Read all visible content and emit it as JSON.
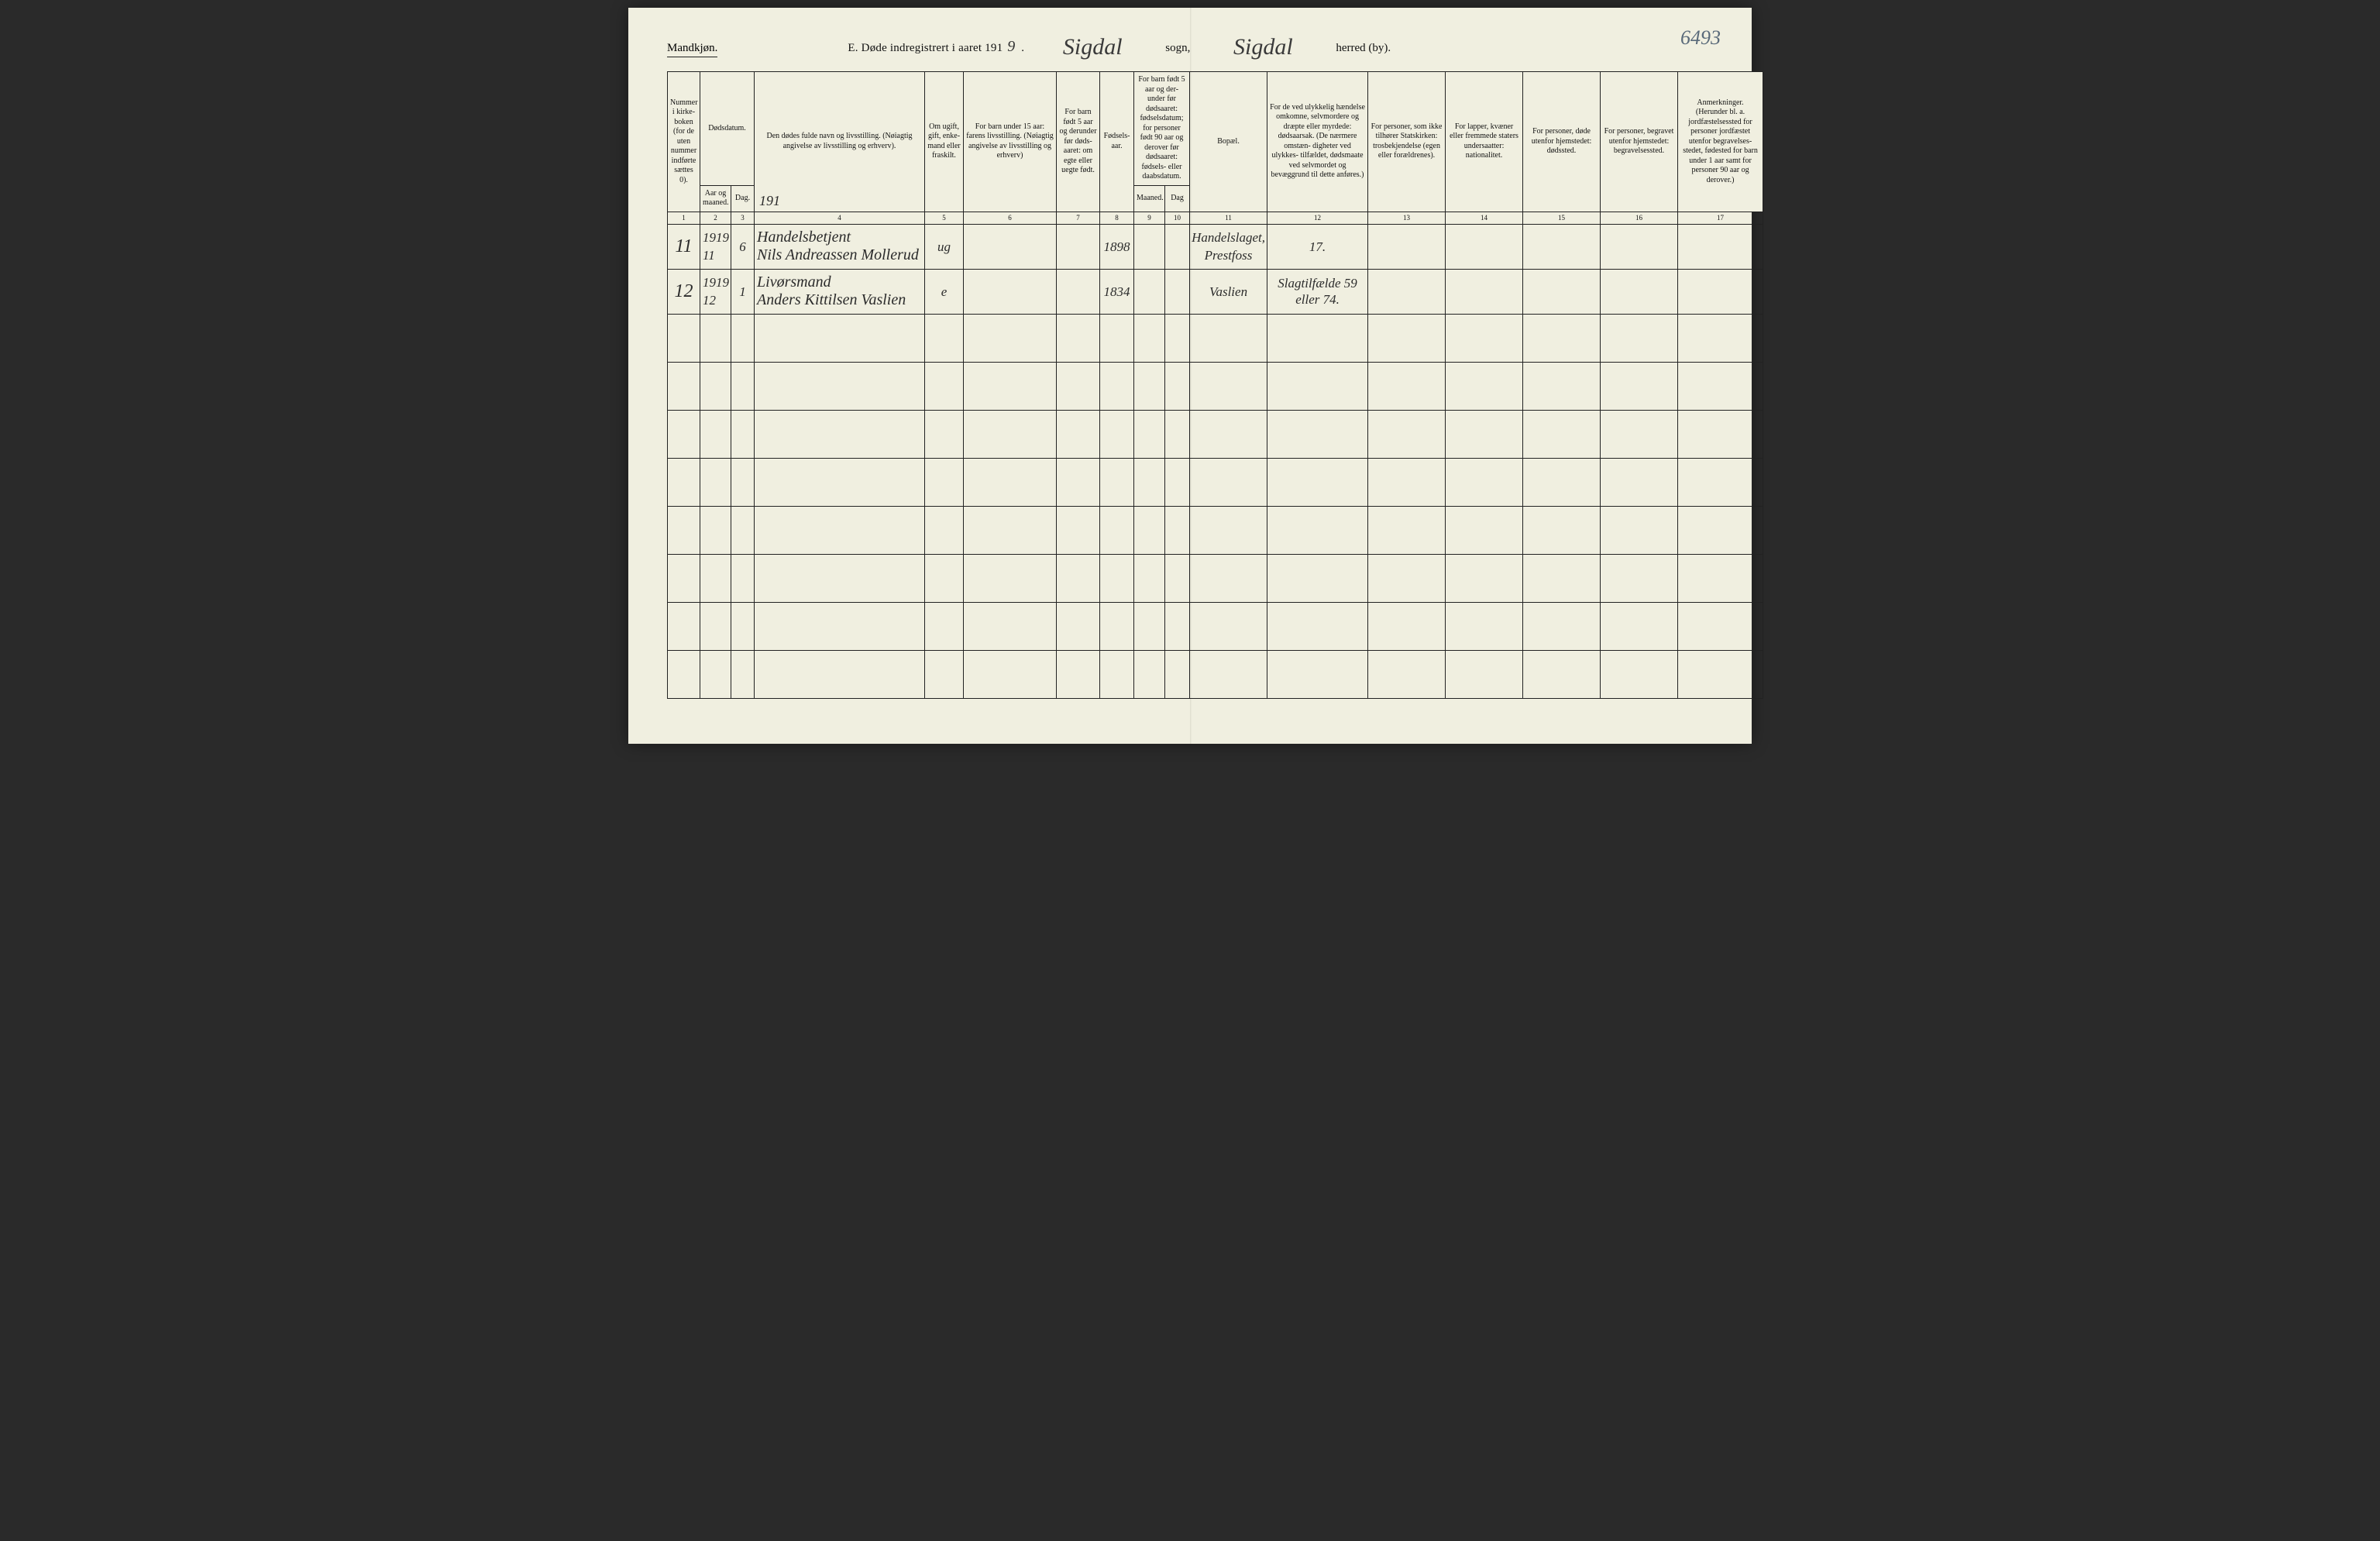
{
  "page": {
    "corner_number": "6493",
    "gender_label": "Mandkjøn.",
    "title_prefix": "E.   Døde indregistrert i aaret 191",
    "year_suffix": "9",
    "sogn_label": "sogn,",
    "herred_label": "herred (by).",
    "sogn_value": "Sigdal",
    "herred_value": "Sigdal"
  },
  "colors": {
    "paper": "#f0efe0",
    "ink": "#111111",
    "rule": "#222222",
    "pencil": "#5a6a7a",
    "cursive": "#2b2b2b"
  },
  "headers": {
    "col1": "Nummer i kirke- boken (for de uten nummer indførte sættes 0).",
    "col23_top": "Dødsdatum.",
    "col2": "Aar og maaned.",
    "col3": "Dag.",
    "col4": "Den dødes fulde navn og livsstilling. (Nøiagtig angivelse av livsstilling og erhverv).",
    "col5": "Om ugift, gift, enke- mand eller fraskilt.",
    "col6": "For barn under 15 aar: farens livsstilling. (Nøiagtig angivelse av livsstilling og erhverv)",
    "col7": "For barn født 5 aar og derunder før døds- aaret: om egte eller uegte født.",
    "col8": "Fødsels- aar.",
    "col910_top": "For barn født 5 aar og der- under før dødsaaret: fødselsdatum; for personer født 90 aar og derover før dødsaaret: fødsels- eller daabsdatum.",
    "col9": "Maaned.",
    "col10": "Dag",
    "col11": "Bopæl.",
    "col12": "For de ved ulykkelig hændelse omkomne, selvmordere og dræpte eller myrdede: dødsaarsak. (De nærmere omstæn- digheter ved ulykkes- tilfældet, dødsmaate ved selvmordet og bevæggrund til dette anføres.)",
    "col13": "For personer, som ikke tilhører Statskirken: trosbekjendelse (egen eller forældrenes).",
    "col14": "For lapper, kvæner eller fremmede staters undersaatter: nationalitet.",
    "col15": "For personer, døde utenfor hjemstedet: dødssted.",
    "col16": "For personer, begravet utenfor hjemstedet: begravelsessted.",
    "col17": "Anmerkninger. (Herunder bl. a. jordfæstelsessted for personer jordfæstet utenfor begravelses- stedet, fødested for barn under 1 aar samt for personer 90 aar og derover.)"
  },
  "colnums": [
    "1",
    "2",
    "3",
    "4",
    "5",
    "6",
    "7",
    "8",
    "9",
    "10",
    "11",
    "12",
    "13",
    "14",
    "15",
    "16",
    "17"
  ],
  "year_inline_col4": "191",
  "rows": [
    {
      "num": "11",
      "year": "1919",
      "month": "11",
      "day": "6",
      "name_top": "Handelsbetjent",
      "name_bottom": "Nils Andreassen Mollerud",
      "status": "ug",
      "col6": "",
      "col7": "",
      "birth_year": "1898",
      "col9": "",
      "col10": "",
      "residence_top": "Handelslaget,",
      "residence_bottom": "Prestfoss",
      "cause": "17.",
      "col13": "",
      "col14": "",
      "col15": "",
      "col16": "",
      "col17": ""
    },
    {
      "num": "12",
      "year": "1919",
      "month": "12",
      "day": "1",
      "name_top": "Livørsmand",
      "name_bottom": "Anders Kittilsen Vaslien",
      "status": "e",
      "col6": "",
      "col7": "",
      "birth_year": "1834",
      "col9": "",
      "col10": "",
      "residence_top": "",
      "residence_bottom": "Vaslien",
      "cause": "Slagtilfælde 59 eller 74.",
      "col13": "",
      "col14": "",
      "col15": "",
      "col16": "",
      "col17": ""
    }
  ],
  "empty_row_count": 8
}
